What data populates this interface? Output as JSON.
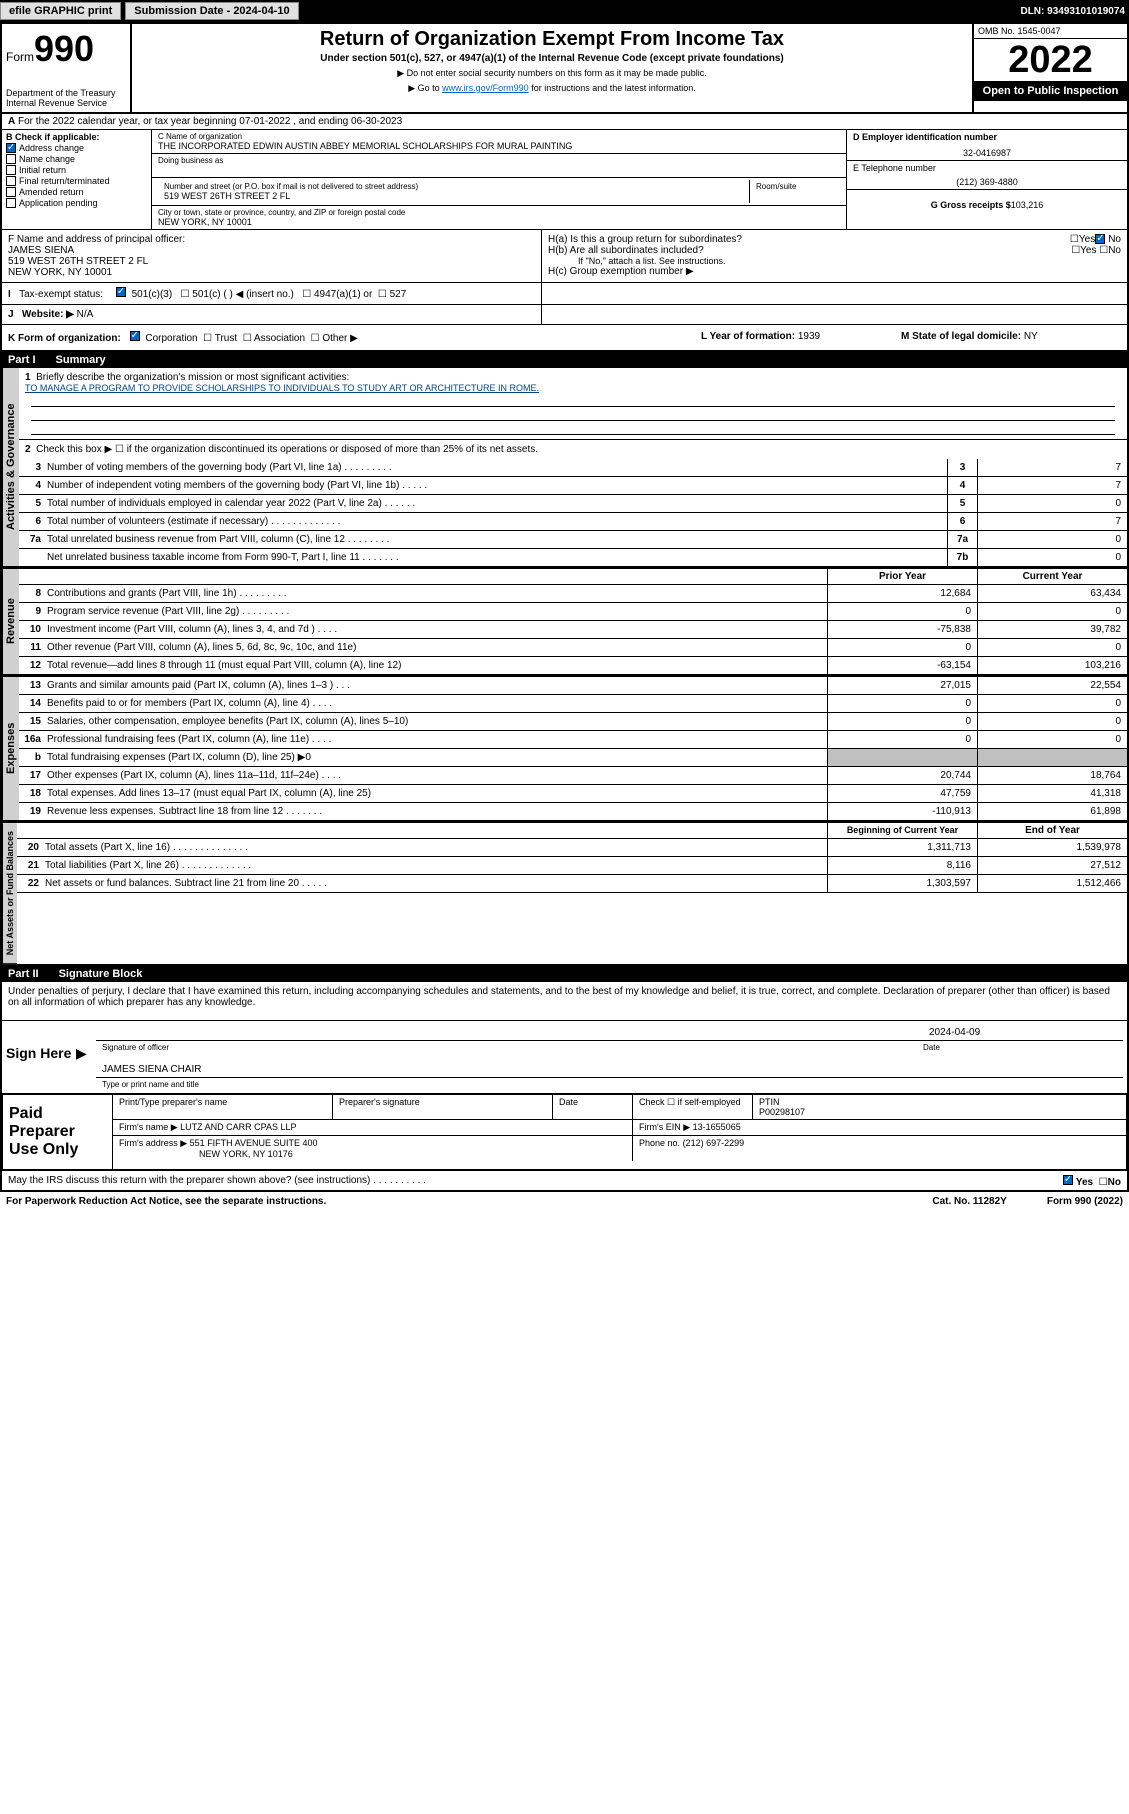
{
  "topbar": {
    "efile": "efile GRAPHIC print",
    "submission_label": "Submission Date - 2024-04-10",
    "dln": "DLN: 93493101019074"
  },
  "header": {
    "form_label": "Form",
    "form_number": "990",
    "dept": "Department of the Treasury\nInternal Revenue Service",
    "title": "Return of Organization Exempt From Income Tax",
    "subtitle": "Under section 501(c), 527, or 4947(a)(1) of the Internal Revenue Code (except private foundations)",
    "sub1": "▶ Do not enter social security numbers on this form as it may be made public.",
    "sub2_pre": "▶ Go to ",
    "sub2_link": "www.irs.gov/Form990",
    "sub2_post": " for instructions and the latest information.",
    "omb": "OMB No. 1545-0047",
    "year": "2022",
    "inspection": "Open to Public Inspection"
  },
  "row_a": "For the 2022 calendar year, or tax year beginning 07-01-2022    , and ending 06-30-2023",
  "section_b": {
    "label": "B Check if applicable:",
    "items": [
      "Address change",
      "Name change",
      "Initial return",
      "Final return/terminated",
      "Amended return",
      "Application pending"
    ],
    "checked_index": 0
  },
  "section_c": {
    "name_label": "C Name of organization",
    "name": "THE INCORPORATED EDWIN AUSTIN ABBEY MEMORIAL SCHOLARSHIPS FOR MURAL PAINTING",
    "dba_label": "Doing business as",
    "street_label": "Number and street (or P.O. box if mail is not delivered to street address)",
    "room_label": "Room/suite",
    "street": "519 WEST 26TH STREET 2 FL",
    "city_label": "City or town, state or province, country, and ZIP or foreign postal code",
    "city": "NEW YORK, NY  10001"
  },
  "section_d": {
    "ein_label": "D Employer identification number",
    "ein": "32-0416987",
    "phone_label": "E Telephone number",
    "phone": "(212) 369-4880",
    "gross_label": "G Gross receipts $",
    "gross": "103,216"
  },
  "section_f": {
    "label": "F Name and address of principal officer:",
    "name": "JAMES SIENA",
    "addr1": "519 WEST 26TH STREET 2 FL",
    "addr2": "NEW YORK, NY  10001"
  },
  "section_h": {
    "ha": "H(a)  Is this a group return for subordinates?",
    "hb": "H(b)  Are all subordinates included?",
    "hb_note": "If \"No,\" attach a list. See instructions.",
    "hc": "H(c)  Group exemption number ▶"
  },
  "row_i_label": "Tax-exempt status:",
  "row_i_opts": [
    "501(c)(3)",
    "501(c) (  ) ◀ (insert no.)",
    "4947(a)(1) or",
    "527"
  ],
  "row_j": "Website: ▶",
  "row_j_val": "N/A",
  "row_k": {
    "label": "K Form of organization:",
    "opts": [
      "Corporation",
      "Trust",
      "Association",
      "Other ▶"
    ],
    "year_label": "L Year of formation:",
    "year": "1939",
    "state_label": "M State of legal domicile:",
    "state": "NY"
  },
  "part1": {
    "label": "Part I",
    "title": "Summary"
  },
  "summary": {
    "line1_label": "Briefly describe the organization's mission or most significant activities:",
    "line1_text": "TO MANAGE A PROGRAM TO PROVIDE SCHOLARSHIPS TO INDIVIDUALS TO STUDY ART OR ARCHITECTURE IN ROME.",
    "line2": "Check this box ▶ ☐  if the organization discontinued its operations or disposed of more than 25% of its net assets.",
    "lines_3_7": [
      {
        "n": "3",
        "t": "Number of voting members of the governing body (Part VI, line 1a)  .    .    .    .    .    .    .    .    .",
        "box": "3",
        "v": "7"
      },
      {
        "n": "4",
        "t": "Number of independent voting members of the governing body (Part VI, line 1b)  .    .    .    .    .",
        "box": "4",
        "v": "7"
      },
      {
        "n": "5",
        "t": "Total number of individuals employed in calendar year 2022 (Part V, line 2a)  .    .    .    .    .    .",
        "box": "5",
        "v": "0"
      },
      {
        "n": "6",
        "t": "Total number of volunteers (estimate if necessary)  .    .    .    .    .    .    .    .    .    .    .    .    .",
        "box": "6",
        "v": "7"
      },
      {
        "n": "7a",
        "t": "Total unrelated business revenue from Part VIII, column (C), line 12  .    .    .    .    .    .    .    .",
        "box": "7a",
        "v": "0"
      },
      {
        "n": "",
        "t": "Net unrelated business taxable income from Form 990-T, Part I, line 11  .    .    .    .    .    .    .",
        "box": "7b",
        "v": "0"
      }
    ],
    "col_prior": "Prior Year",
    "col_current": "Current Year",
    "revenue": [
      {
        "n": "8",
        "t": "Contributions and grants (Part VIII, line 1h)  .    .    .    .    .    .    .    .    .",
        "p": "12,684",
        "c": "63,434"
      },
      {
        "n": "9",
        "t": "Program service revenue (Part VIII, line 2g)  .    .    .    .    .    .    .    .    .",
        "p": "0",
        "c": "0"
      },
      {
        "n": "10",
        "t": "Investment income (Part VIII, column (A), lines 3, 4, and 7d )  .    .    .    .",
        "p": "-75,838",
        "c": "39,782"
      },
      {
        "n": "11",
        "t": "Other revenue (Part VIII, column (A), lines 5, 6d, 8c, 9c, 10c, and 11e)",
        "p": "0",
        "c": "0"
      },
      {
        "n": "12",
        "t": "Total revenue—add lines 8 through 11 (must equal Part VIII, column (A), line 12)",
        "p": "-63,154",
        "c": "103,216"
      }
    ],
    "expenses": [
      {
        "n": "13",
        "t": "Grants and similar amounts paid (Part IX, column (A), lines 1–3 )  .    .    .",
        "p": "27,015",
        "c": "22,554"
      },
      {
        "n": "14",
        "t": "Benefits paid to or for members (Part IX, column (A), line 4)  .    .    .    .",
        "p": "0",
        "c": "0"
      },
      {
        "n": "15",
        "t": "Salaries, other compensation, employee benefits (Part IX, column (A), lines 5–10)",
        "p": "0",
        "c": "0"
      },
      {
        "n": "16a",
        "t": "Professional fundraising fees (Part IX, column (A), line 11e)  .    .    .    .",
        "p": "0",
        "c": "0"
      },
      {
        "n": "b",
        "t": "Total fundraising expenses (Part IX, column (D), line 25) ▶0",
        "p": "",
        "c": "",
        "shaded": true
      },
      {
        "n": "17",
        "t": "Other expenses (Part IX, column (A), lines 11a–11d, 11f–24e)  .    .    .    .",
        "p": "20,744",
        "c": "18,764"
      },
      {
        "n": "18",
        "t": "Total expenses. Add lines 13–17 (must equal Part IX, column (A), line 25)",
        "p": "47,759",
        "c": "41,318"
      },
      {
        "n": "19",
        "t": "Revenue less expenses. Subtract line 18 from line 12  .    .    .    .    .    .    .",
        "p": "-110,913",
        "c": "61,898"
      }
    ],
    "col_begin": "Beginning of Current Year",
    "col_end": "End of Year",
    "netassets": [
      {
        "n": "20",
        "t": "Total assets (Part X, line 16)  .    .    .    .    .    .    .    .    .    .    .    .    .    .",
        "p": "1,311,713",
        "c": "1,539,978"
      },
      {
        "n": "21",
        "t": "Total liabilities (Part X, line 26)  .    .    .    .    .    .    .    .    .    .    .    .    .",
        "p": "8,116",
        "c": "27,512"
      },
      {
        "n": "22",
        "t": "Net assets or fund balances. Subtract line 21 from line 20  .    .    .    .    .",
        "p": "1,303,597",
        "c": "1,512,466"
      }
    ]
  },
  "side_labels": {
    "gov": "Activities & Governance",
    "rev": "Revenue",
    "exp": "Expenses",
    "net": "Net Assets or Fund Balances"
  },
  "part2": {
    "label": "Part II",
    "title": "Signature Block",
    "declaration": "Under penalties of perjury, I declare that I have examined this return, including accompanying schedules and statements, and to the best of my knowledge and belief, it is true, correct, and complete. Declaration of preparer (other than officer) is based on all information of which preparer has any knowledge."
  },
  "sign": {
    "label": "Sign Here",
    "sig_label": "Signature of officer",
    "date_label": "Date",
    "date": "2024-04-09",
    "name": "JAMES SIENA  CHAIR",
    "name_label": "Type or print name and title"
  },
  "preparer": {
    "label": "Paid Preparer Use Only",
    "h1": "Print/Type preparer's name",
    "h2": "Preparer's signature",
    "h3": "Date",
    "h4_pre": "Check ☐ if self-employed",
    "ptin_label": "PTIN",
    "ptin": "P00298107",
    "firm_label": "Firm's name     ▶",
    "firm": "LUTZ AND CARR CPAS LLP",
    "ein_label": "Firm's EIN ▶",
    "ein": "13-1655065",
    "addr_label": "Firm's address ▶",
    "addr1": "551 FIFTH AVENUE SUITE 400",
    "addr2": "NEW YORK, NY  10176",
    "phone_label": "Phone no.",
    "phone": "(212) 697-2299"
  },
  "discuss": "May the IRS discuss this return with the preparer shown above? (see instructions)  .    .    .    .    .    .    .    .    .    .",
  "footer": {
    "left": "For Paperwork Reduction Act Notice, see the separate instructions.",
    "mid": "Cat. No. 11282Y",
    "right": "Form 990 (2022)"
  }
}
